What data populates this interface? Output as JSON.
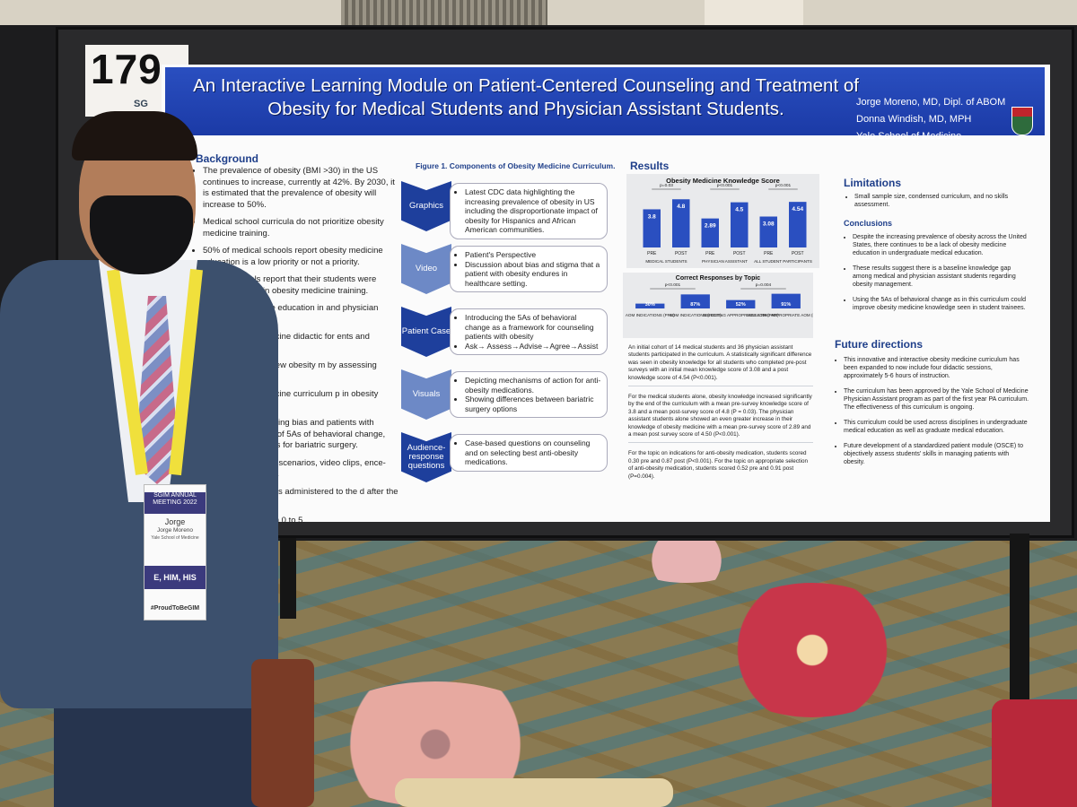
{
  "booth": {
    "number": "179",
    "sub": "SG"
  },
  "poster": {
    "title": "An Interactive Learning Module on Patient-Centered Counseling and Treatment of Obesity for Medical Students and Physician Assistant Students.",
    "authors": [
      "Jorge Moreno, MD, Dipl. of ABOM",
      "Donna Windish, MD, MPH",
      "Yale School of Medicine"
    ],
    "background": {
      "heading": "Background",
      "items": [
        "The prevalence of obesity (BMI >30) in the US continues to increase, currently at 42%. By 2030, it is estimated that the prevalence of obesity will increase to 50%.",
        "Medical school curricula do not prioritize obesity medicine training.",
        "50% of medical schools report obesity medicine education is a low priority or not a priority.",
        "10% of schools report that their students were \"well-prepared\" in obesity medicine training.",
        "in obesity medicine education in and physician assistant curricula.",
        "ective obesity medicine didactic for ents and physician students.",
        "ectiveness of this new obesity m by assessing changes in",
        "ective obesity medicine curriculum p in obesity medicine education.",
        "overed topics including bias and patients with obesity, counseling of 5As of behavioral change, rapy, and indications for bariatric surgery.",
        "included case-base scenarios, video clips, ence-response questions.",
        "dge assessment was administered to the d after the curriculum.",
        "e score ranged from 0 to 5."
      ]
    },
    "figure": {
      "caption": "Figure 1. Components of Obesity Medicine Curriculum.",
      "steps": [
        {
          "label": "Graphics",
          "points": [
            "Latest CDC data highlighting the increasing prevalence of obesity in US including the disproportionate impact of obesity for Hispanics and African American communities."
          ]
        },
        {
          "label": "Video",
          "points": [
            "Patient's Perspective",
            "Discussion about bias and stigma that a patient with obesity endures in healthcare setting."
          ]
        },
        {
          "label": "Patient Case",
          "points": [
            "Introducing the 5As of behavioral change as a framework for counseling patients with obesity",
            "Ask→ Assess→Advise→Agree→Assist"
          ]
        },
        {
          "label": "Visuals",
          "points": [
            "Depicting mechanisms of action for anti-obesity medications.",
            "Showing differences between bariatric surgery options"
          ]
        },
        {
          "label": "Audience-response questions",
          "points": [
            "Case-based questions on counseling and on selecting best anti-obesity medications."
          ]
        }
      ]
    },
    "results": {
      "heading": "Results",
      "text": [
        "An initial cohort of 14 medical students and 36 physician assistant students participated in the curriculum. A statistically significant difference was seen in obesity knowledge for all students who completed pre-post surveys with an initial mean knowledge score of 3.08 and a post knowledge score of 4.54 (P<0.001).",
        "For the medical students alone, obesity knowledge increased significantly by the end of the curriculum with a mean pre-survey knowledge score of 3.8 and a mean post-survey score of 4.8 (P = 0.03). The physician assistant students alone showed an even greater increase in their knowledge of obesity medicine with a mean pre-survey score of 2.89 and a mean post survey score of 4.50 (P<0.001).",
        "For the topic on indications for anti-obesity medication, students scored 0.30 pre and 0.87 post (P<0.001). For the topic on appropriate selection of anti-obesity medication, students scored 0.52 pre and 0.91 post (P=0.004)."
      ]
    },
    "limitations": {
      "heading": "Limitations",
      "text": "Small sample size, condensed curriculum, and no skills assessment."
    },
    "conclusions": {
      "heading": "Conclusions",
      "items": [
        "Despite the increasing prevalence of obesity across the United States, there continues to be a lack of obesity medicine education in undergraduate medical education.",
        "These results suggest there is a baseline knowledge gap among medical and physician assistant students regarding obesity management.",
        "Using the 5As of behavioral change as in this curriculum could improve obesity medicine knowledge seen in student trainees."
      ]
    },
    "future": {
      "heading": "Future directions",
      "items": [
        "This innovative and interactive obesity medicine curriculum has been expanded to now include four didactic sessions, approximately 5-6 hours of instruction.",
        "The curriculum has been approved by the Yale School of Medicine Physician Assistant program as part of the first year PA curriculum. The effectiveness of this curriculum is ongoing.",
        "This curriculum could be used across disciplines in undergraduate medical education as well as graduate medical education.",
        "Future development of a standardized patient module (OSCE) to objectively assess students' skills in managing patients with obesity."
      ]
    }
  },
  "chart_data": [
    {
      "type": "bar",
      "title": "Obesity Medicine Knowledge Score",
      "groups": [
        "MEDICAL STUDENTS",
        "PHYSICIAN ASSISTANT",
        "ALL STUDENT PARTICIPANTS"
      ],
      "categories": [
        "PRE",
        "POST",
        "PRE",
        "POST",
        "PRE",
        "POST"
      ],
      "values": [
        3.8,
        4.8,
        2.89,
        4.5,
        3.08,
        4.54
      ],
      "labels": [
        "3.8",
        "4.8",
        "2.89",
        "4.5",
        "3.08",
        "4.54"
      ],
      "pvalues": [
        "p=0.03",
        "p<0.001",
        "p<0.001"
      ],
      "ylim": [
        0,
        5
      ]
    },
    {
      "type": "bar",
      "title": "Correct Responses by Topic",
      "categories": [
        "AOM INDICATIONS (PRE)",
        "AOM INDICATIONS (POST)",
        "SELECTING APPROPRIATE AOM (PRE)",
        "SELECTING APPROPRIATE AOM (POST)"
      ],
      "values": [
        30,
        87,
        52,
        91
      ],
      "labels": [
        "30%",
        "87%",
        "52%",
        "91%"
      ],
      "pvalues": [
        "p<0.001",
        "p=0.004"
      ],
      "ylim": [
        0,
        100
      ]
    }
  ],
  "badge": {
    "banner": "SGIM ANNUAL MEETING 2022",
    "name": "Jorge",
    "full_name": "Jorge Moreno",
    "school": "Yale School of Medicine",
    "strip": "E, HIM, HIS",
    "tag": "#ProudToBeGIM"
  },
  "colors": {
    "title_bar": "#1b3aa6",
    "bar": "#2a4fc0",
    "chevron": "#1e3f9c"
  }
}
